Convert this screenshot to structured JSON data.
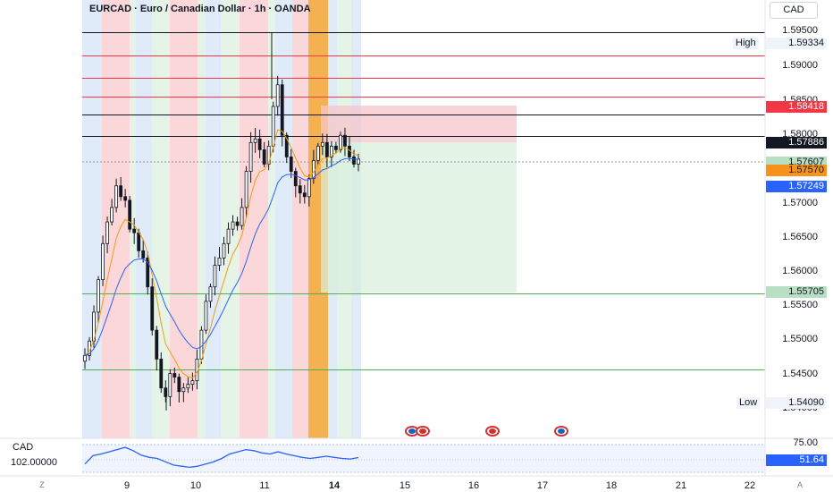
{
  "header": {
    "title": "EURCAD · Euro / Canadian Dollar · 1h · OANDA",
    "currency_button": "CAD"
  },
  "price_axis": {
    "ticks": [
      "1.59500",
      "1.59000",
      "1.58500",
      "1.58000",
      "1.57000",
      "1.56500",
      "1.56000",
      "1.55500",
      "1.55000",
      "1.54500",
      "1.54000"
    ]
  },
  "price_tags": {
    "high_label": "High",
    "high_value": "1.59334",
    "red_level": "1.58418",
    "black_level": "1.57886",
    "green_tag": "1.57607",
    "orange_tag": "1.57570",
    "blue_tag": "1.57249",
    "green_level": "1.55705",
    "low_label": "Low",
    "low_value": "1.54090"
  },
  "time_axis": {
    "labels": [
      "9",
      "10",
      "11",
      "14",
      "15",
      "16",
      "17",
      "18",
      "21",
      "22"
    ],
    "left_corner": "Z",
    "right_corner": "A"
  },
  "oscillator": {
    "currency": "CAD",
    "left_value": "102.00000",
    "level_top": "75.00",
    "current": "51.64"
  },
  "colors": {
    "red_zone": "#f8bcc2",
    "blue_zone": "#c9ddf5",
    "green_zone": "#d5ecd9",
    "orange_zone": "#f3a93f",
    "ema_orange": "#f39c12",
    "ema_blue": "#2962ff",
    "candle": "#131722"
  },
  "chart_data": {
    "type": "candlestick",
    "symbol": "EURCAD",
    "timeframe": "1h",
    "price_range": [
      1.5395,
      1.5965
    ],
    "high": 1.59334,
    "low": 1.5409,
    "horizontal_levels": [
      1.59334,
      1.59,
      1.5869,
      1.5843,
      1.5819,
      1.57886,
      1.55705,
      1.5466
    ],
    "close_path": [
      1.5485,
      1.5505,
      1.5545,
      1.559,
      1.564,
      1.567,
      1.569,
      1.572,
      1.5705,
      1.57,
      1.566,
      1.5655,
      1.563,
      1.562,
      1.558,
      1.552,
      1.548,
      1.544,
      1.5428,
      1.546,
      1.5455,
      1.5435,
      1.544,
      1.5445,
      1.545,
      1.548,
      1.552,
      1.556,
      1.558,
      1.561,
      1.562,
      1.564,
      1.566,
      1.567,
      1.5665,
      1.569,
      1.574,
      1.578,
      1.5785,
      1.577,
      1.575,
      1.5775,
      1.583,
      1.586,
      1.579,
      1.576,
      1.574,
      1.572,
      1.571,
      1.5705,
      1.573,
      1.5755,
      1.5775,
      1.578,
      1.576,
      1.5775,
      1.577,
      1.579,
      1.5775,
      1.576,
      1.575,
      1.5757
    ],
    "oscillator_values": [
      40,
      55,
      58,
      62,
      66,
      70,
      64,
      56,
      52,
      50,
      44,
      38,
      36,
      34,
      36,
      40,
      44,
      50,
      58,
      62,
      66,
      64,
      60,
      58,
      62,
      58,
      55,
      52,
      50,
      52,
      54,
      52,
      50,
      49,
      51.64
    ]
  }
}
